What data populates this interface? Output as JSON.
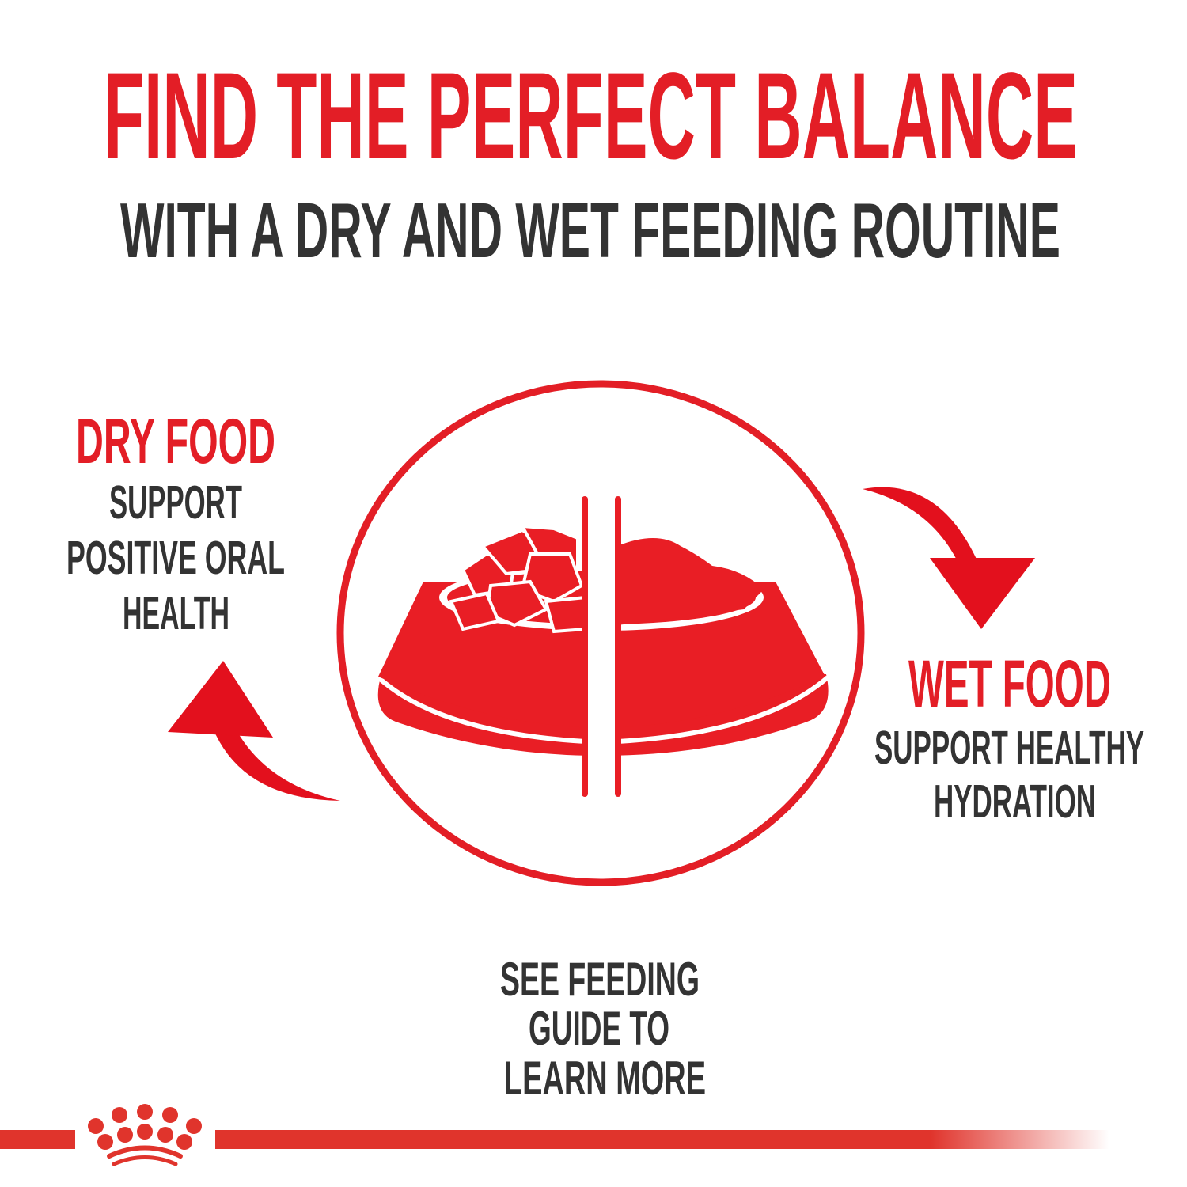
{
  "header": {
    "title": "FIND THE PERFECT BALANCE",
    "subtitle": "WITH A DRY AND WET FEEDING ROUTINE"
  },
  "dry_food": {
    "heading": "DRY FOOD",
    "lines": [
      "SUPPORT",
      "POSITIVE ORAL",
      "HEALTH"
    ]
  },
  "wet_food": {
    "heading": "WET FOOD",
    "lines": [
      "SUPPORT HEALTHY",
      "HYDRATION"
    ]
  },
  "footer_note": {
    "lines": [
      "SEE FEEDING",
      "GUIDE TO",
      "LEARN MORE"
    ]
  },
  "icons": {
    "center": "split-food-bowl-icon",
    "right_arrow": "curved-arrow-down-icon",
    "left_arrow": "curved-arrow-up-icon",
    "logo": "crown-logo"
  },
  "colors": {
    "accent": "#e31e26",
    "text": "#333333"
  }
}
